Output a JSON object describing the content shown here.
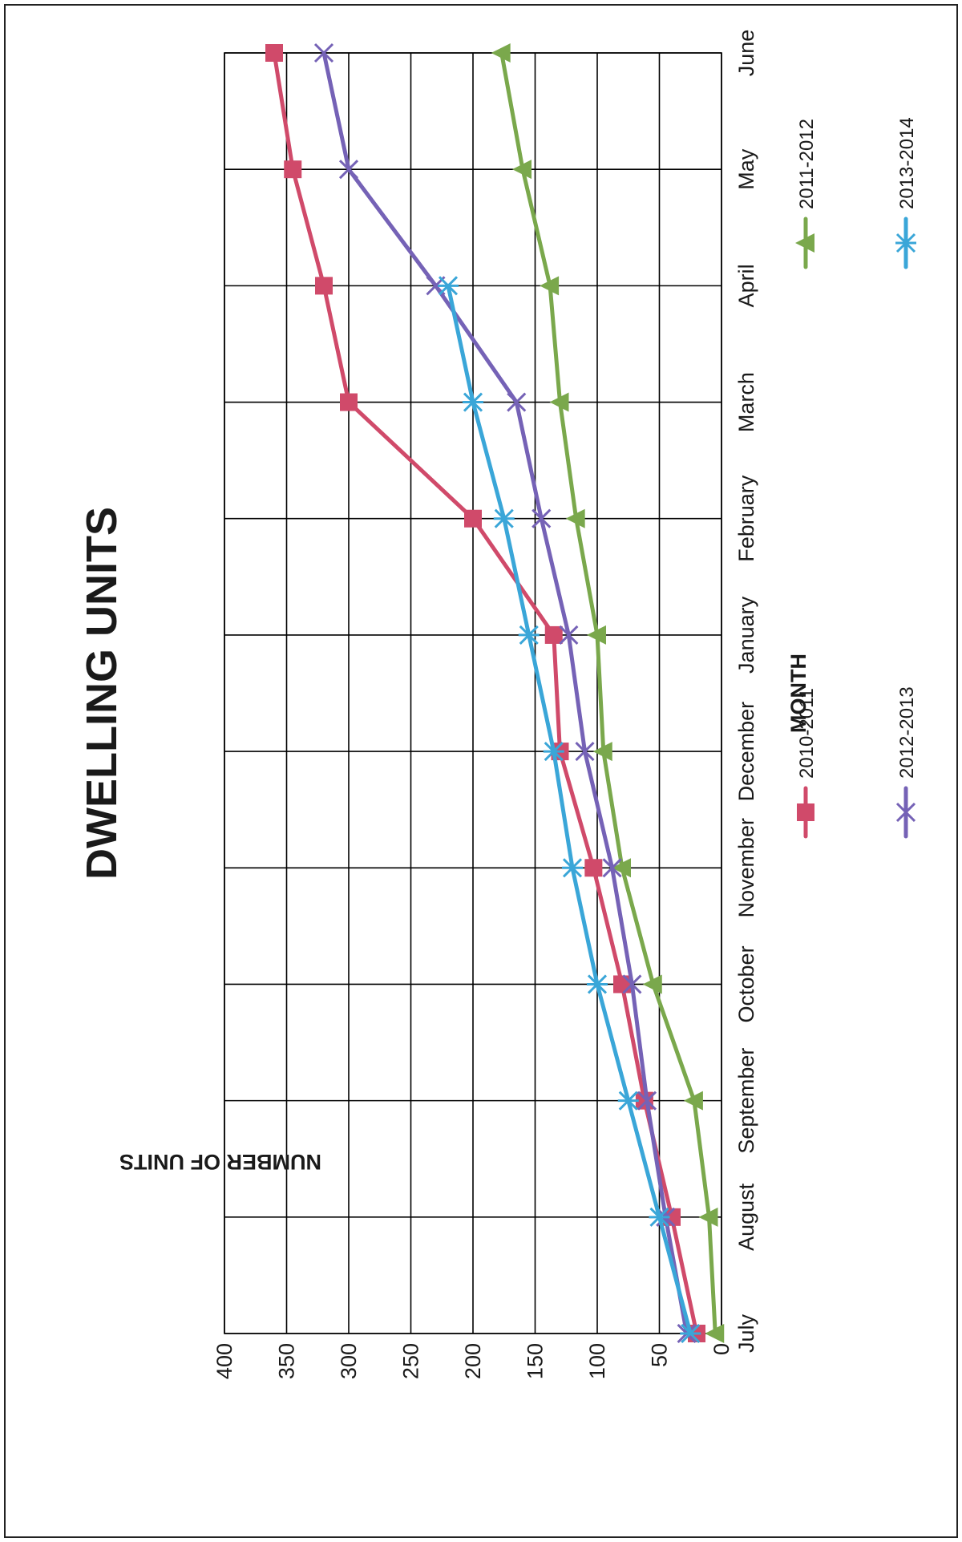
{
  "chart_data": {
    "type": "line",
    "title": "DWELLING UNITS",
    "xlabel": "MONTH",
    "ylabel": "NUMBER OF UNITS",
    "categories": [
      "July",
      "August",
      "September",
      "October",
      "November",
      "December",
      "January",
      "February",
      "March",
      "April",
      "May",
      "June"
    ],
    "y_ticks": [
      "0",
      "50",
      "100",
      "150",
      "200",
      "250",
      "300",
      "350",
      "400"
    ],
    "ylim": [
      0,
      400
    ],
    "grid": true,
    "legend_position": "bottom",
    "series": [
      {
        "name": "2010-2011",
        "color": "#d04a6a",
        "marker": "square",
        "values": [
          20,
          40,
          62,
          80,
          103,
          130,
          135,
          200,
          300,
          320,
          345,
          360
        ]
      },
      {
        "name": "2011-2012",
        "color": "#7aa84c",
        "marker": "triangle",
        "values": [
          5,
          10,
          22,
          55,
          80,
          95,
          100,
          117,
          130,
          138,
          160,
          177
        ]
      },
      {
        "name": "2012-2013",
        "color": "#7562b6",
        "marker": "x",
        "values": [
          28,
          45,
          60,
          72,
          88,
          110,
          123,
          145,
          165,
          230,
          300,
          320
        ]
      },
      {
        "name": "2013-2014",
        "color": "#3aa6d8",
        "marker": "asterisk",
        "values": [
          25,
          50,
          75,
          100,
          120,
          135,
          155,
          175,
          200,
          220,
          null,
          null
        ]
      }
    ]
  }
}
